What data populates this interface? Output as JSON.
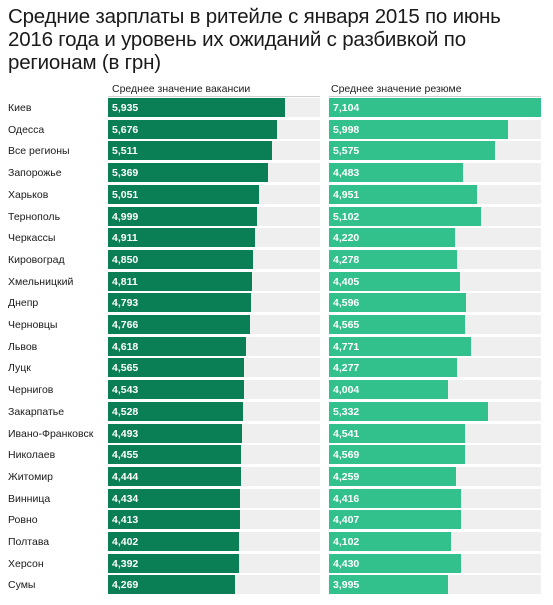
{
  "chart_data": {
    "type": "bar",
    "orientation": "horizontal",
    "title": "Средние зарплаты в ритейле с января 2015 по июнь 2016 года и уровень их ожиданий с разбивкой по регионам (в грн)",
    "xlim": [
      0,
      7104
    ],
    "colors": {
      "vacancy": "#0a7f55",
      "resume": "#32c08d",
      "track": "#efefef"
    },
    "categories": [
      "Киев",
      "Одесса",
      "Все регионы",
      "Запорожье",
      "Харьков",
      "Тернополь",
      "Черкассы",
      "Кировоград",
      "Хмельницкий",
      "Днепр",
      "Черновцы",
      "Львов",
      "Луцк",
      "Чернигов",
      "Закарпатье",
      "Ивано-Франковск",
      "Николаев",
      "Житомир",
      "Винница",
      "Ровно",
      "Полтава",
      "Херсон",
      "Сумы"
    ],
    "series": [
      {
        "name": "Среднее значение вакансии",
        "values": [
          5935,
          5676,
          5511,
          5369,
          5051,
          4999,
          4911,
          4850,
          4811,
          4793,
          4766,
          4618,
          4565,
          4543,
          4528,
          4493,
          4455,
          4444,
          4434,
          4413,
          4402,
          4392,
          4269
        ],
        "labels": [
          "5,935",
          "5,676",
          "5,511",
          "5,369",
          "5,051",
          "4,999",
          "4,911",
          "4,850",
          "4,811",
          "4,793",
          "4,766",
          "4,618",
          "4,565",
          "4,543",
          "4,528",
          "4,493",
          "4,455",
          "4,444",
          "4,434",
          "4,413",
          "4,402",
          "4,392",
          "4,269"
        ]
      },
      {
        "name": "Среднее значение резюме",
        "values": [
          7104,
          5998,
          5575,
          4483,
          4951,
          5102,
          4220,
          4278,
          4405,
          4596,
          4565,
          4771,
          4277,
          4004,
          5332,
          4541,
          4569,
          4259,
          4416,
          4407,
          4102,
          4430,
          3995
        ],
        "labels": [
          "7,104",
          "5,998",
          "5,575",
          "4,483",
          "4,951",
          "5,102",
          "4,220",
          "4,278",
          "4,405",
          "4,596",
          "4,565",
          "4,771",
          "4,277",
          "4,004",
          "5,332",
          "4,541",
          "4,569",
          "4,259",
          "4,416",
          "4,407",
          "4,102",
          "4,430",
          "3,995"
        ]
      }
    ]
  }
}
